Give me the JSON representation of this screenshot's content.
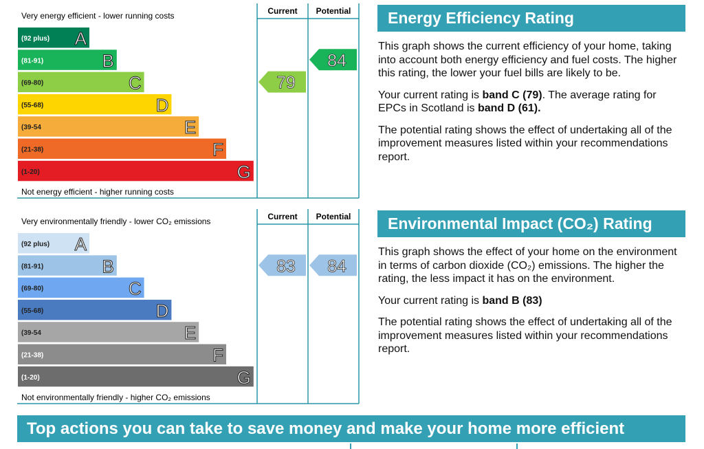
{
  "energy_chart": {
    "top_label": "Very energy efficient - lower running costs",
    "bottom_label": "Not energy efficient - higher running costs",
    "column_headers": [
      "Current",
      "Potential"
    ],
    "bands": [
      {
        "range": "(92 plus)",
        "letter": "A",
        "color": "#008054",
        "label_color": "#ffffff"
      },
      {
        "range": "(81-91)",
        "letter": "B",
        "color": "#19b459",
        "label_color": "#ffffff"
      },
      {
        "range": "(69-80)",
        "letter": "C",
        "color": "#8dce46",
        "label_color": "#222222"
      },
      {
        "range": "(55-68)",
        "letter": "D",
        "color": "#ffd500",
        "label_color": "#222222"
      },
      {
        "range": "(39-54",
        "letter": "E",
        "color": "#f6ac3a",
        "label_color": "#222222"
      },
      {
        "range": "(21-38)",
        "letter": "F",
        "color": "#ef6a26",
        "label_color": "#222222"
      },
      {
        "range": "(1-20)",
        "letter": "G",
        "color": "#e31d23",
        "label_color": "#222222"
      }
    ],
    "current": {
      "value": 79,
      "color": "#8dce46"
    },
    "potential": {
      "value": 84,
      "color": "#19b459"
    }
  },
  "environment_chart": {
    "top_label": "Very environmentally friendly - lower CO₂ emissions",
    "bottom_label": "Not environmentally friendly - higher CO₂ emissions",
    "column_headers": [
      "Current",
      "Potential"
    ],
    "bands": [
      {
        "range": "(92 plus)",
        "letter": "A",
        "color": "#cfe2f3",
        "label_color": "#222222"
      },
      {
        "range": "(81-91)",
        "letter": "B",
        "color": "#9dc3e6",
        "label_color": "#222222"
      },
      {
        "range": "(69-80)",
        "letter": "C",
        "color": "#6fa8f0",
        "label_color": "#222222"
      },
      {
        "range": "(55-68)",
        "letter": "D",
        "color": "#4a7ac0",
        "label_color": "#222222"
      },
      {
        "range": "(39-54",
        "letter": "E",
        "color": "#a6a6a6",
        "label_color": "#222222"
      },
      {
        "range": "(21-38)",
        "letter": "F",
        "color": "#8c8c8c",
        "label_color": "#ffffff"
      },
      {
        "range": "(1-20)",
        "letter": "G",
        "color": "#6d6d6d",
        "label_color": "#ffffff"
      }
    ],
    "current": {
      "value": 83,
      "color": "#9dc3e6"
    },
    "potential": {
      "value": 84,
      "color": "#9dc3e6"
    }
  },
  "energy_panel": {
    "title": "Energy Efficiency Rating",
    "paragraphs": [
      [
        {
          "text": "This graph shows the current efficiency of your home, taking into account both energy efficiency and fuel costs. The higher this rating, the lower your fuel bills are likely to be.",
          "bold": false
        }
      ],
      [
        {
          "text": "Your current rating is ",
          "bold": false
        },
        {
          "text": "band C (79)",
          "bold": true
        },
        {
          "text": ". The average rating for EPCs in Scotland is ",
          "bold": false
        },
        {
          "text": "band D (61).",
          "bold": true
        }
      ],
      [
        {
          "text": "The potential rating shows the effect of undertaking all of the improvement measures listed within your recommendations report.",
          "bold": false
        }
      ]
    ]
  },
  "environment_panel": {
    "title": "Environmental Impact (CO₂) Rating",
    "paragraphs": [
      [
        {
          "text": "This graph shows the effect of your home on the environment in terms of carbon dioxide (CO₂) emissions. The higher the rating, the less impact it has on the environment.",
          "bold": false
        }
      ],
      [
        {
          "text": "Your current rating is ",
          "bold": false
        },
        {
          "text": "band B (83)",
          "bold": true
        }
      ],
      [
        {
          "text": "The potential rating shows the effect of undertaking all of the improvement measures listed within your recommendations report.",
          "bold": false
        }
      ]
    ]
  },
  "actions_banner": "Top actions you can take to save money and make your home more efficient"
}
